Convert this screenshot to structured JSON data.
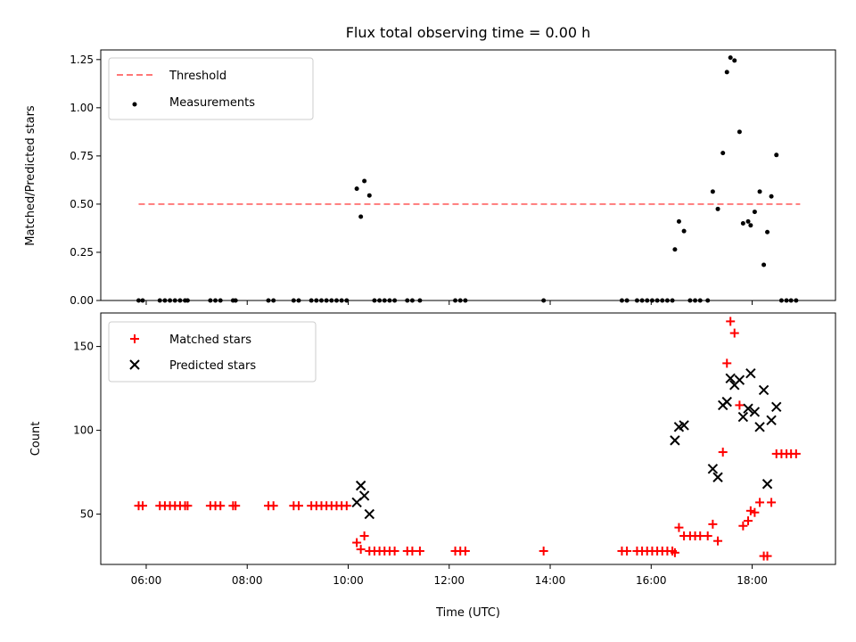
{
  "chart_data": [
    {
      "type": "scatter",
      "title": "Flux total observing time = 0.00 h",
      "xlabel": "",
      "ylabel": "Matched/Predicted stars",
      "xlim": [
        5.1,
        19.65
      ],
      "ylim": [
        0,
        1.3
      ],
      "yticks": [
        "0.00",
        "0.25",
        "0.50",
        "0.75",
        "1.00",
        "1.25"
      ],
      "ytick_values": [
        0,
        0.25,
        0.5,
        0.75,
        1.0,
        1.25
      ],
      "grid": false,
      "legend_position": "top-left",
      "threshold": {
        "name": "Threshold",
        "value": 0.5,
        "x_range": [
          5.85,
          18.95
        ],
        "color": "#ff7777"
      },
      "series": [
        {
          "name": "Measurements",
          "color": "#000000",
          "marker": "dot",
          "points": [
            [
              5.85,
              0
            ],
            [
              5.93,
              0
            ],
            [
              6.27,
              0
            ],
            [
              6.37,
              0
            ],
            [
              6.47,
              0
            ],
            [
              6.57,
              0
            ],
            [
              6.67,
              0
            ],
            [
              6.77,
              0
            ],
            [
              6.82,
              0
            ],
            [
              7.27,
              0
            ],
            [
              7.37,
              0
            ],
            [
              7.47,
              0
            ],
            [
              7.72,
              0
            ],
            [
              7.77,
              0
            ],
            [
              8.42,
              0
            ],
            [
              8.52,
              0
            ],
            [
              8.92,
              0
            ],
            [
              9.02,
              0
            ],
            [
              9.27,
              0
            ],
            [
              9.37,
              0
            ],
            [
              9.47,
              0
            ],
            [
              9.57,
              0
            ],
            [
              9.67,
              0
            ],
            [
              9.77,
              0
            ],
            [
              9.87,
              0
            ],
            [
              9.97,
              0
            ],
            [
              10.17,
              0.58
            ],
            [
              10.25,
              0.435
            ],
            [
              10.32,
              0.62
            ],
            [
              10.42,
              0.545
            ],
            [
              10.52,
              0
            ],
            [
              10.62,
              0
            ],
            [
              10.72,
              0
            ],
            [
              10.82,
              0
            ],
            [
              10.92,
              0
            ],
            [
              11.17,
              0
            ],
            [
              11.27,
              0
            ],
            [
              11.42,
              0
            ],
            [
              12.12,
              0
            ],
            [
              12.22,
              0
            ],
            [
              12.32,
              0
            ],
            [
              13.87,
              0
            ],
            [
              15.42,
              0
            ],
            [
              15.52,
              0
            ],
            [
              15.72,
              0
            ],
            [
              15.82,
              0
            ],
            [
              15.92,
              0
            ],
            [
              16.02,
              0
            ],
            [
              16.12,
              0
            ],
            [
              16.22,
              0
            ],
            [
              16.32,
              0
            ],
            [
              16.42,
              0
            ],
            [
              16.47,
              0.265
            ],
            [
              16.55,
              0.41
            ],
            [
              16.65,
              0.36
            ],
            [
              16.77,
              0
            ],
            [
              16.87,
              0
            ],
            [
              16.97,
              0
            ],
            [
              17.12,
              0
            ],
            [
              17.22,
              0.565
            ],
            [
              17.32,
              0.475
            ],
            [
              17.42,
              0.765
            ],
            [
              17.5,
              1.185
            ],
            [
              17.57,
              1.26
            ],
            [
              17.65,
              1.245
            ],
            [
              17.75,
              0.875
            ],
            [
              17.82,
              0.4
            ],
            [
              17.92,
              0.41
            ],
            [
              17.97,
              0.39
            ],
            [
              18.05,
              0.46
            ],
            [
              18.15,
              0.565
            ],
            [
              18.23,
              0.185
            ],
            [
              18.3,
              0.355
            ],
            [
              18.38,
              0.54
            ],
            [
              18.48,
              0.755
            ],
            [
              18.58,
              0
            ],
            [
              18.68,
              0
            ],
            [
              18.77,
              0
            ],
            [
              18.87,
              0
            ]
          ]
        }
      ]
    },
    {
      "type": "scatter",
      "title": "",
      "xlabel": "Time (UTC)",
      "ylabel": "Count",
      "xlim": [
        5.1,
        19.65
      ],
      "ylim": [
        20,
        170
      ],
      "xticks": [
        "06:00",
        "08:00",
        "10:00",
        "12:00",
        "14:00",
        "16:00",
        "18:00"
      ],
      "xtick_values": [
        6,
        8,
        10,
        12,
        14,
        16,
        18
      ],
      "yticks": [
        "50",
        "100",
        "150"
      ],
      "ytick_values": [
        50,
        100,
        150
      ],
      "grid": false,
      "legend_position": "top-left",
      "series": [
        {
          "name": "Matched stars",
          "color": "#ff0000",
          "marker": "plus",
          "points": [
            [
              5.85,
              55
            ],
            [
              5.93,
              55
            ],
            [
              6.27,
              55
            ],
            [
              6.37,
              55
            ],
            [
              6.47,
              55
            ],
            [
              6.57,
              55
            ],
            [
              6.67,
              55
            ],
            [
              6.77,
              55
            ],
            [
              6.82,
              55
            ],
            [
              7.27,
              55
            ],
            [
              7.37,
              55
            ],
            [
              7.47,
              55
            ],
            [
              7.72,
              55
            ],
            [
              7.77,
              55
            ],
            [
              8.42,
              55
            ],
            [
              8.52,
              55
            ],
            [
              8.92,
              55
            ],
            [
              9.02,
              55
            ],
            [
              9.27,
              55
            ],
            [
              9.37,
              55
            ],
            [
              9.47,
              55
            ],
            [
              9.57,
              55
            ],
            [
              9.67,
              55
            ],
            [
              9.77,
              55
            ],
            [
              9.87,
              55
            ],
            [
              9.97,
              55
            ],
            [
              10.17,
              33
            ],
            [
              10.25,
              29
            ],
            [
              10.32,
              37
            ],
            [
              10.42,
              28
            ],
            [
              10.52,
              28
            ],
            [
              10.62,
              28
            ],
            [
              10.72,
              28
            ],
            [
              10.82,
              28
            ],
            [
              10.92,
              28
            ],
            [
              11.17,
              28
            ],
            [
              11.27,
              28
            ],
            [
              11.42,
              28
            ],
            [
              12.12,
              28
            ],
            [
              12.22,
              28
            ],
            [
              12.32,
              28
            ],
            [
              13.87,
              28
            ],
            [
              15.42,
              28
            ],
            [
              15.52,
              28
            ],
            [
              15.72,
              28
            ],
            [
              15.82,
              28
            ],
            [
              15.92,
              28
            ],
            [
              16.02,
              28
            ],
            [
              16.12,
              28
            ],
            [
              16.22,
              28
            ],
            [
              16.32,
              28
            ],
            [
              16.42,
              28
            ],
            [
              16.47,
              27
            ],
            [
              16.55,
              42
            ],
            [
              16.65,
              37
            ],
            [
              16.77,
              37
            ],
            [
              16.87,
              37
            ],
            [
              16.97,
              37
            ],
            [
              17.12,
              37
            ],
            [
              17.22,
              44
            ],
            [
              17.32,
              34
            ],
            [
              17.42,
              87
            ],
            [
              17.5,
              140
            ],
            [
              17.57,
              165
            ],
            [
              17.65,
              158
            ],
            [
              17.75,
              115
            ],
            [
              17.82,
              43
            ],
            [
              17.92,
              46
            ],
            [
              17.97,
              52
            ],
            [
              18.05,
              51
            ],
            [
              18.15,
              57
            ],
            [
              18.23,
              25
            ],
            [
              18.3,
              25
            ],
            [
              18.38,
              57
            ],
            [
              18.48,
              86
            ],
            [
              18.58,
              86
            ],
            [
              18.68,
              86
            ],
            [
              18.77,
              86
            ],
            [
              18.87,
              86
            ]
          ]
        },
        {
          "name": "Predicted stars",
          "color": "#000000",
          "marker": "x",
          "points": [
            [
              10.17,
              57
            ],
            [
              10.25,
              67
            ],
            [
              10.32,
              61
            ],
            [
              10.42,
              50
            ],
            [
              16.47,
              94
            ],
            [
              16.55,
              102
            ],
            [
              16.65,
              103
            ],
            [
              17.22,
              77
            ],
            [
              17.32,
              72
            ],
            [
              17.42,
              115
            ],
            [
              17.5,
              117
            ],
            [
              17.57,
              131
            ],
            [
              17.65,
              127
            ],
            [
              17.75,
              130
            ],
            [
              17.82,
              108
            ],
            [
              17.92,
              113
            ],
            [
              17.97,
              134
            ],
            [
              18.05,
              111
            ],
            [
              18.15,
              102
            ],
            [
              18.23,
              124
            ],
            [
              18.3,
              68
            ],
            [
              18.38,
              106
            ],
            [
              18.48,
              114
            ]
          ]
        }
      ]
    }
  ]
}
